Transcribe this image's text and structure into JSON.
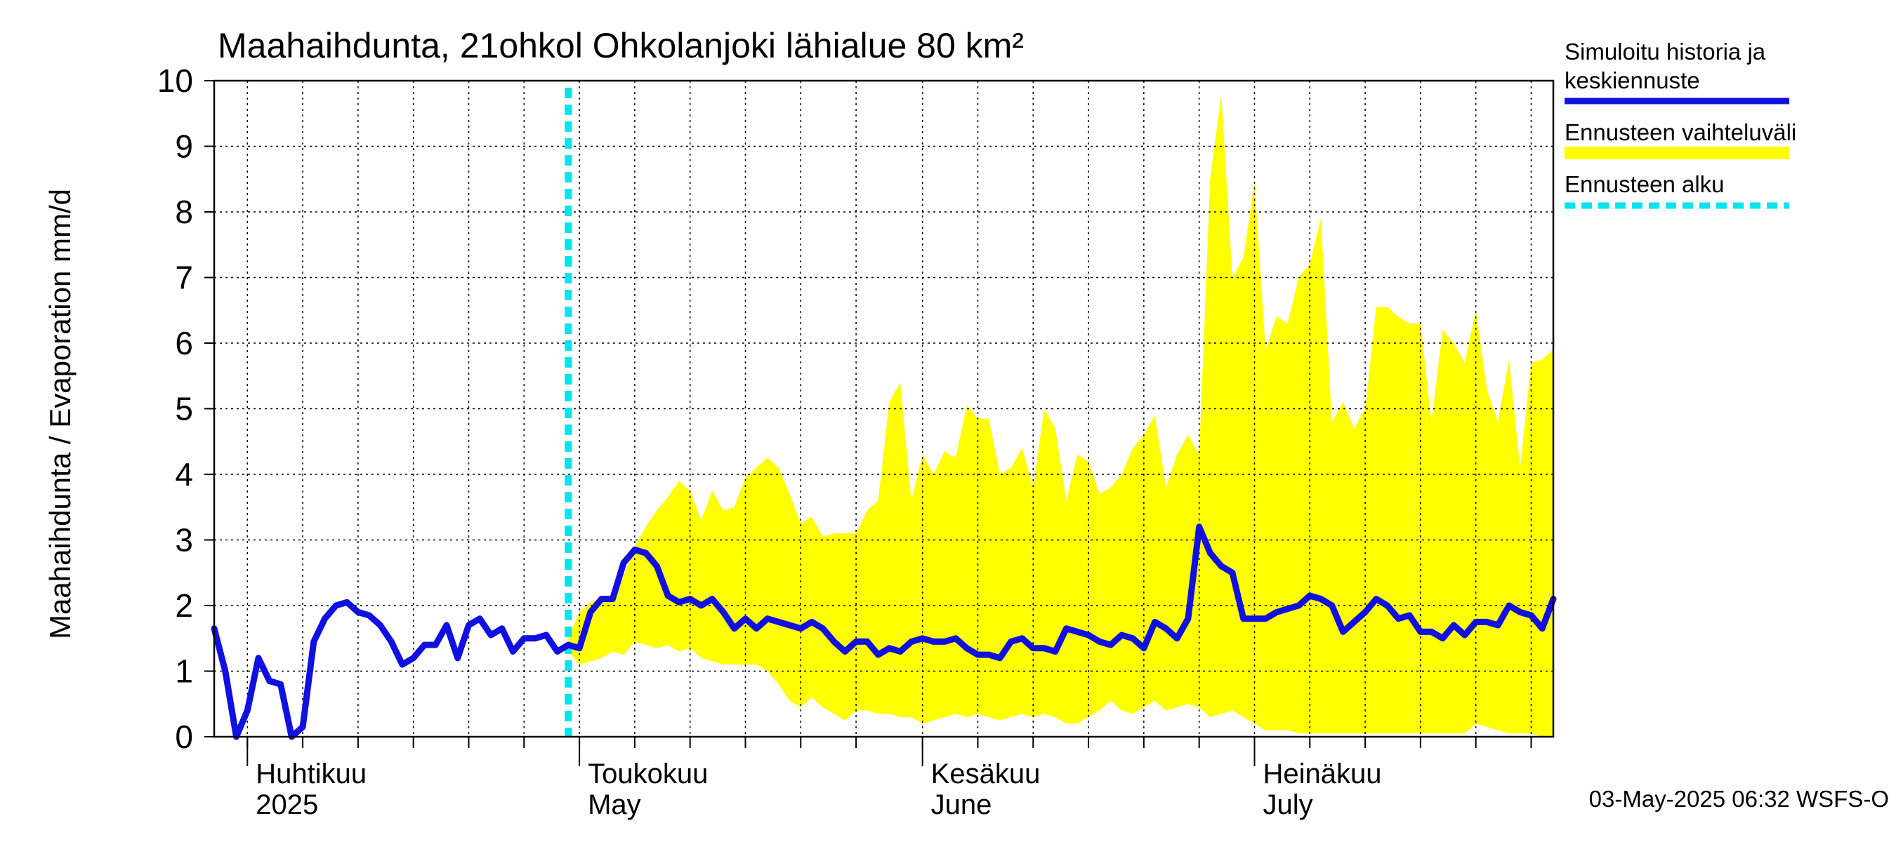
{
  "chart_data": {
    "type": "area",
    "title": "Maahaihdunta, 21ohkol Ohkolanjoki lähialue 80 km²",
    "ylabel": "Maahaihdunta / Evaporation   mm/d",
    "ylim": [
      0,
      10
    ],
    "yticks": [
      0,
      1,
      2,
      3,
      4,
      5,
      6,
      7,
      8,
      9,
      10
    ],
    "x_start": "2025-03-29",
    "x_end": "2025-07-28",
    "month_labels": [
      {
        "line1": "Huhtikuu",
        "line2": "2025",
        "date": "2025-04-01"
      },
      {
        "line1": "Toukokuu",
        "line2": "May",
        "date": "2025-05-01"
      },
      {
        "line1": "Kesäkuu",
        "line2": "June",
        "date": "2025-06-01"
      },
      {
        "line1": "Heinäkuu",
        "line2": "July",
        "date": "2025-07-01"
      }
    ],
    "forecast_start": "2025-04-30",
    "legend": [
      {
        "label_line1": "Simuloitu historia ja",
        "label_line2": "keskiennuste",
        "color": "#1010e0",
        "style": "solid"
      },
      {
        "label_line1": "Ennusteen vaihteluväli",
        "label_line2": "",
        "color": "#ffff00",
        "style": "band"
      },
      {
        "label_line1": "Ennusteen alku",
        "label_line2": "",
        "color": "#00e5ee",
        "style": "dashed"
      }
    ],
    "footer": "03-May-2025 06:32 WSFS-O",
    "series": [
      {
        "name": "Simuloitu historia ja keskiennuste",
        "color": "#1010e0",
        "values": [
          1.65,
          1.0,
          0.0,
          0.4,
          1.2,
          0.85,
          0.8,
          0.0,
          0.15,
          1.45,
          1.8,
          2.0,
          2.05,
          1.9,
          1.85,
          1.7,
          1.45,
          1.1,
          1.2,
          1.4,
          1.4,
          1.7,
          1.2,
          1.7,
          1.8,
          1.55,
          1.65,
          1.3,
          1.5,
          1.5,
          1.55,
          1.3,
          1.4,
          1.35,
          1.9,
          2.1,
          2.1,
          2.65,
          2.85,
          2.8,
          2.6,
          2.15,
          2.05,
          2.1,
          2.0,
          2.1,
          1.9,
          1.65,
          1.8,
          1.65,
          1.8,
          1.75,
          1.7,
          1.65,
          1.75,
          1.65,
          1.45,
          1.3,
          1.45,
          1.45,
          1.25,
          1.35,
          1.3,
          1.45,
          1.5,
          1.45,
          1.45,
          1.5,
          1.35,
          1.25,
          1.25,
          1.2,
          1.45,
          1.5,
          1.35,
          1.35,
          1.3,
          1.65,
          1.6,
          1.55,
          1.45,
          1.4,
          1.55,
          1.5,
          1.35,
          1.75,
          1.65,
          1.5,
          1.8,
          3.2,
          2.8,
          2.6,
          2.5,
          1.8,
          1.8,
          1.8,
          1.9,
          1.95,
          2.0,
          2.15,
          2.1,
          2.0,
          1.6,
          1.75,
          1.9,
          2.1,
          2.0,
          1.8,
          1.85,
          1.6,
          1.6,
          1.5,
          1.7,
          1.55,
          1.75,
          1.75,
          1.7,
          2.0,
          1.9,
          1.85,
          1.65,
          2.1
        ]
      },
      {
        "name": "Ennusteen vaihteluväli (yläraja)",
        "color": "#ffff00",
        "values": [
          1.5,
          1.9,
          2.05,
          2.1,
          2.1,
          2.45,
          2.9,
          3.2,
          3.45,
          3.65,
          3.9,
          3.75,
          3.3,
          3.75,
          3.45,
          3.5,
          3.95,
          4.1,
          4.25,
          4.1,
          3.7,
          3.25,
          3.35,
          3.05,
          3.1,
          3.1,
          3.1,
          3.45,
          3.6,
          5.1,
          5.4,
          3.6,
          4.3,
          4.0,
          4.35,
          4.25,
          5.05,
          4.85,
          4.85,
          4.0,
          4.1,
          4.4,
          3.8,
          5.0,
          4.7,
          3.6,
          4.3,
          4.2,
          3.7,
          3.8,
          4.0,
          4.4,
          4.6,
          4.9,
          3.8,
          4.3,
          4.6,
          4.3,
          8.5,
          9.8,
          7.0,
          7.3,
          8.45,
          5.9,
          6.4,
          6.3,
          7.0,
          7.2,
          7.9,
          4.8,
          5.1,
          4.7,
          5.0,
          6.55,
          6.55,
          6.4,
          6.3,
          6.3,
          4.8,
          6.2,
          6.0,
          5.7,
          6.5,
          5.3,
          4.8,
          5.75,
          4.1,
          5.7,
          5.75,
          5.9
        ]
      },
      {
        "name": "Ennusteen vaihteluväli (alaraja)",
        "color": "#ffff00",
        "values": [
          1.3,
          1.1,
          1.15,
          1.2,
          1.3,
          1.25,
          1.45,
          1.4,
          1.35,
          1.4,
          1.3,
          1.35,
          1.2,
          1.15,
          1.1,
          1.1,
          1.1,
          1.1,
          1.0,
          0.8,
          0.55,
          0.45,
          0.6,
          0.45,
          0.35,
          0.25,
          0.4,
          0.4,
          0.35,
          0.35,
          0.3,
          0.3,
          0.2,
          0.25,
          0.3,
          0.35,
          0.3,
          0.35,
          0.3,
          0.25,
          0.3,
          0.35,
          0.3,
          0.35,
          0.3,
          0.2,
          0.2,
          0.3,
          0.4,
          0.55,
          0.4,
          0.35,
          0.45,
          0.55,
          0.4,
          0.45,
          0.5,
          0.45,
          0.3,
          0.35,
          0.4,
          0.3,
          0.2,
          0.1,
          0.1,
          0.1,
          0.05,
          0.05,
          0.05,
          0.05,
          0.05,
          0.05,
          0.05,
          0.05,
          0.05,
          0.05,
          0.05,
          0.05,
          0.05,
          0.05,
          0.05,
          0.05,
          0.2,
          0.15,
          0.1,
          0.05,
          0.05,
          0.05,
          0.0,
          0.0
        ]
      }
    ]
  }
}
